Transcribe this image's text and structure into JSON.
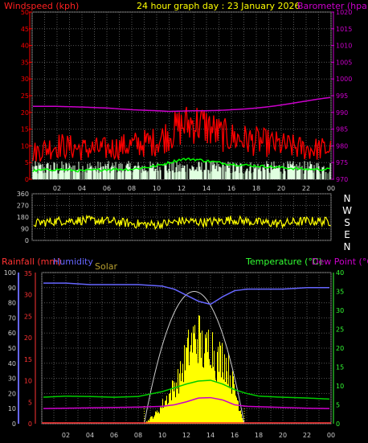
{
  "header": {
    "title": "24 hour graph day : 23 January 2026",
    "wind_label": "Windspeed (kph)",
    "baro_label": "Barometer (hpa)",
    "rain_label": "Rainfall (mm)",
    "humidity_label": "Humidity",
    "solar_label": "Solar",
    "temp_label": "Temperature (°C)",
    "dew_label": "Dew Point (°C)"
  },
  "colors": {
    "wind": "#ff0000",
    "wind_label": "#ff2020",
    "baro": "#cc00cc",
    "avg_wind": "#00ff00",
    "gust_bars": "#e0ffe0",
    "direction": "#ffff00",
    "rain": "#ff3333",
    "humidity": "#6666ff",
    "solar": "#ffff00",
    "solar_max": "#cccccc",
    "temp": "#00cc00",
    "dew": "#cc00cc",
    "title": "#ffff00",
    "grid": "#555555",
    "axis_text": "#cccccc"
  },
  "chart_data": [
    {
      "type": "line",
      "panel": "wind-barometer",
      "x_tick_labels": [
        "02",
        "04",
        "06",
        "08",
        "10",
        "12",
        "14",
        "16",
        "18",
        "20",
        "22",
        "00"
      ],
      "y_left_ticks": [
        "0",
        "5",
        "10",
        "15",
        "20",
        "25",
        "30",
        "35",
        "40",
        "45",
        "50"
      ],
      "y_right_ticks": [
        "970",
        "975",
        "980",
        "985",
        "990",
        "995",
        "1000",
        "1005",
        "1010",
        "1015",
        "1020"
      ],
      "ylim_left": [
        0,
        50
      ],
      "ylim_right": [
        970,
        1020
      ],
      "series": [
        {
          "name": "Windspeed (kph)",
          "axis": "left",
          "x_hours": [
            0,
            2,
            4,
            6,
            8,
            10,
            11,
            12,
            13,
            14,
            15,
            16,
            18,
            20,
            22,
            24
          ],
          "values": [
            7,
            9,
            8,
            8,
            9,
            10,
            12,
            14,
            15,
            14,
            12,
            11,
            10,
            9,
            8,
            8
          ]
        },
        {
          "name": "Barometer (hpa)",
          "axis": "right",
          "x_hours": [
            0,
            2,
            4,
            6,
            8,
            10,
            11,
            12,
            13,
            14,
            15,
            16,
            17,
            18,
            19,
            20,
            21,
            22,
            23,
            24
          ],
          "values": [
            991.8,
            991.8,
            991.6,
            991.3,
            990.8,
            990.5,
            990.3,
            990.4,
            990.5,
            990.5,
            990.6,
            990.8,
            991,
            991.3,
            991.7,
            992.2,
            992.8,
            993.4,
            994,
            994.5
          ]
        },
        {
          "axis": "left",
          "x_hours": [
            0,
            2,
            4,
            6,
            8,
            10,
            11,
            12,
            13,
            14,
            15,
            16,
            18,
            20,
            22,
            24
          ],
          "values": [
            2.5,
            3,
            2.5,
            3,
            3,
            4,
            5,
            6,
            6,
            5.5,
            5,
            4.5,
            4,
            3.5,
            3,
            3
          ]
        }
      ]
    },
    {
      "type": "scatter",
      "panel": "wind-direction",
      "y_ticks": [
        "0",
        "90",
        "180",
        "270",
        "360"
      ],
      "y_right_labels": [
        "N",
        "W",
        "S",
        "E",
        "N"
      ],
      "ylim": [
        0,
        360
      ],
      "series": [
        {
          "x_hours": [
            0,
            2,
            4,
            6,
            8,
            10,
            12,
            14,
            16,
            18,
            20,
            22,
            24
          ],
          "values": [
            130,
            150,
            155,
            150,
            130,
            120,
            150,
            140,
            160,
            140,
            130,
            150,
            145
          ]
        }
      ]
    },
    {
      "type": "line",
      "panel": "temperature-humidity-solar",
      "x_tick_labels": [
        "02",
        "04",
        "06",
        "08",
        "10",
        "12",
        "14",
        "16",
        "18",
        "20",
        "22",
        "00"
      ],
      "y_left_humidity_ticks": [
        "0",
        "10",
        "20",
        "30",
        "40",
        "50",
        "60",
        "70",
        "80",
        "90",
        "100"
      ],
      "y_left_rain_ticks": [
        "0",
        "5",
        "10",
        "15",
        "20",
        "25",
        "30",
        "35"
      ],
      "y_right_ticks": [
        "0",
        "5",
        "10",
        "15",
        "20",
        "25",
        "30",
        "35",
        "40"
      ],
      "ylim_humidity": [
        0,
        100
      ],
      "ylim_temp": [
        0,
        40
      ],
      "series": [
        {
          "name": "Humidity",
          "axis": "humidity",
          "x_hours": [
            0,
            2,
            4,
            6,
            8,
            10,
            11,
            12,
            13,
            14,
            15,
            16,
            17,
            18,
            20,
            22,
            24
          ],
          "values": [
            93,
            93,
            92,
            92,
            92,
            91,
            89,
            85,
            81,
            79,
            84,
            88,
            89,
            89,
            89,
            90,
            90
          ]
        },
        {
          "name": "Temperature (°C)",
          "axis": "temp",
          "x_hours": [
            0,
            2,
            4,
            6,
            8,
            10,
            11,
            12,
            13,
            14,
            15,
            16,
            17,
            18,
            20,
            22,
            24
          ],
          "values": [
            7,
            7.3,
            7.2,
            7,
            7.2,
            8.5,
            9.5,
            10.5,
            11.3,
            11.5,
            10.5,
            9,
            8,
            7.3,
            7,
            6.8,
            6.5
          ]
        },
        {
          "name": "Dew Point (°C)",
          "axis": "temp",
          "x_hours": [
            0,
            2,
            4,
            6,
            8,
            10,
            11,
            12,
            13,
            14,
            15,
            16,
            17,
            18,
            20,
            22,
            24
          ],
          "values": [
            4,
            4.1,
            4.2,
            4.3,
            4.4,
            4.6,
            5,
            5.8,
            6.8,
            6.9,
            6.3,
            5,
            4.6,
            4.5,
            4.3,
            4.1,
            4
          ]
        },
        {
          "name": "Rainfall (mm)",
          "axis": "rain",
          "x_hours": [
            0,
            24
          ],
          "values": [
            0,
            0
          ]
        },
        {
          "name": "Solar",
          "axis": "solar",
          "x_hours": [
            8.5,
            9.5,
            10.5,
            11.5,
            12,
            12.5,
            13,
            13.5,
            14,
            14.5,
            15,
            15.5,
            16,
            16.5,
            16.8
          ],
          "values": [
            0,
            3,
            8,
            14,
            20,
            24,
            26,
            20,
            25,
            18,
            20,
            16,
            10,
            4,
            0
          ]
        }
      ]
    }
  ]
}
